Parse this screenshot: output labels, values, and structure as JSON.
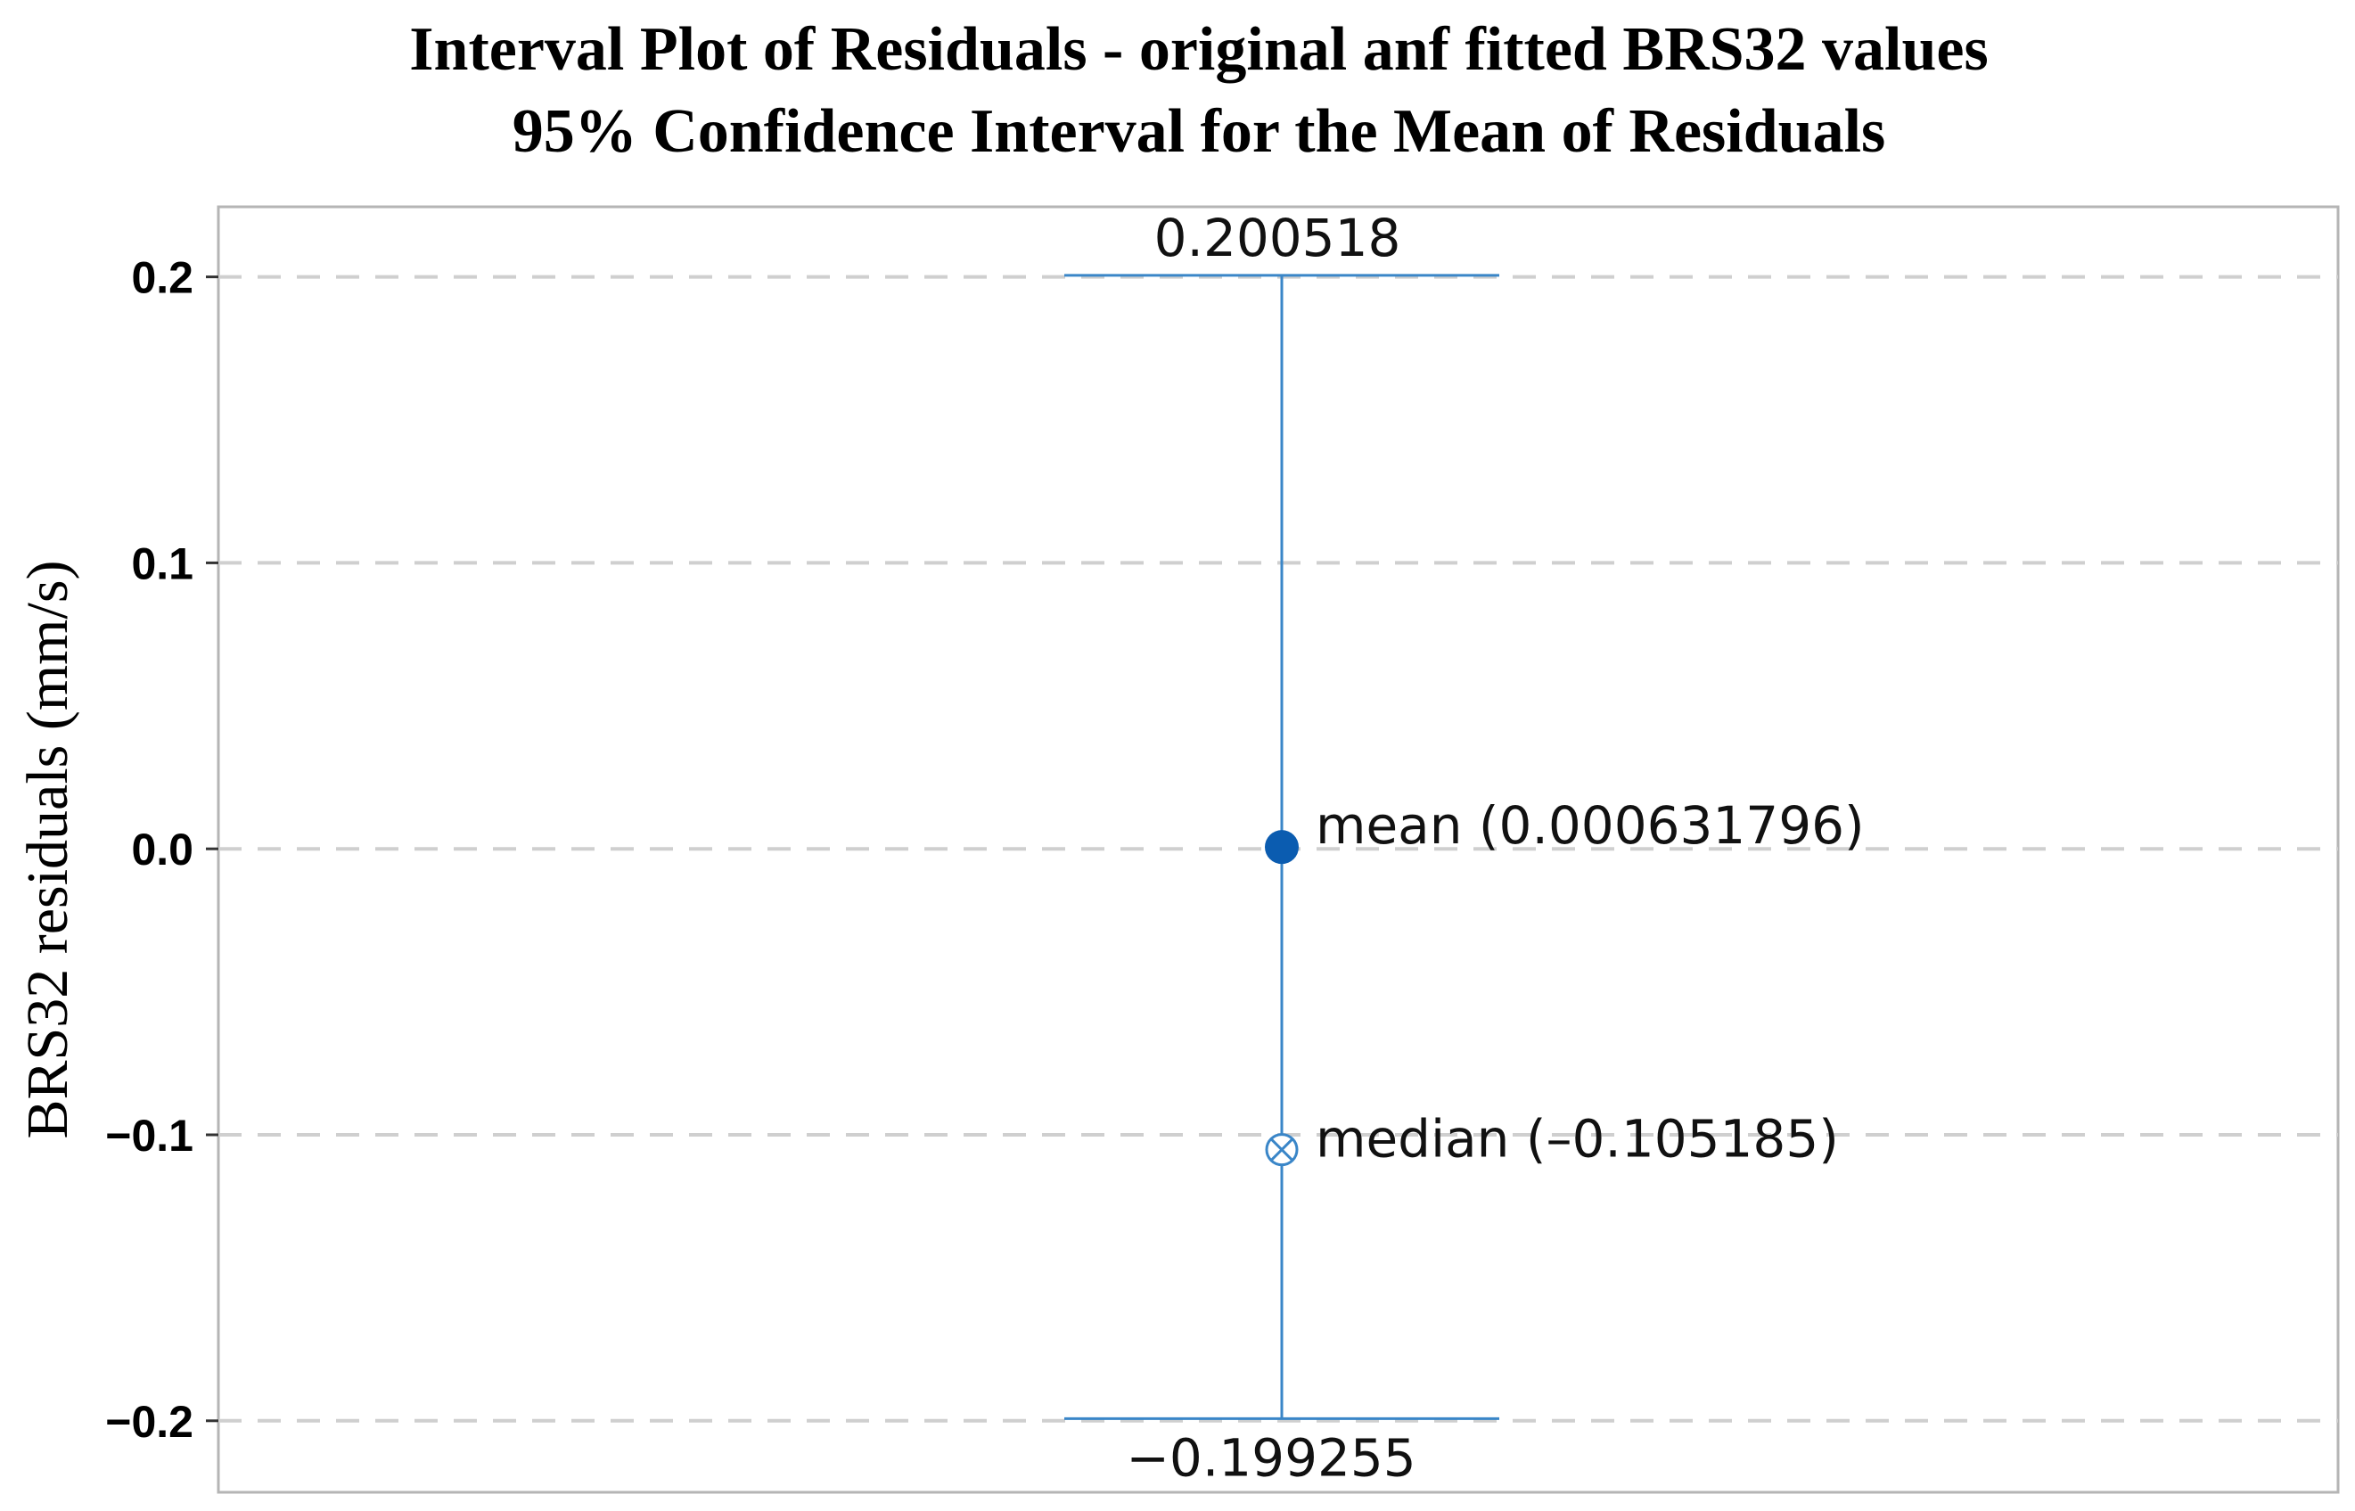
{
  "chart_data": {
    "type": "interval",
    "title": "Interval Plot of Residuals - original anf fitted BRS32 values",
    "subtitle": "95% Confidence Interval for the Mean of Residuals",
    "xlabel": "",
    "ylabel": "BRS32 residuals (mm/s)",
    "ylim": [
      -0.225,
      0.2245
    ],
    "y_ticks": [
      0.2,
      0.1,
      0.0,
      -0.1,
      -0.2
    ],
    "y_tick_labels": [
      "0.2",
      "0.1",
      "0.0",
      "−0.1",
      "−0.2"
    ],
    "grid": "horizontal dashed",
    "interval": {
      "upper": 0.200518,
      "lower": -0.199255,
      "mean": 0.000631796,
      "median": -0.105185,
      "upper_label": "0.200518",
      "lower_label": "−0.199255",
      "mean_label": "mean (0.000631796)",
      "median_label": "median (–0.105185)"
    },
    "colors": {
      "interval": "#3a86c8",
      "mean_marker": "#0b5cb0",
      "median_marker": "#3a86c8",
      "grid": "#cfcfcf",
      "frame": "#b5b5b5"
    }
  }
}
